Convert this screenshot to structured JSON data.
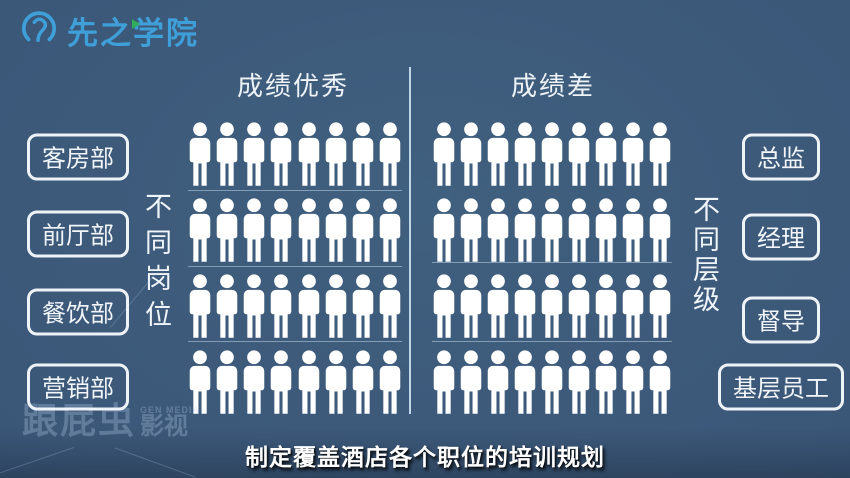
{
  "page": {
    "background_color": "#3d5a7b"
  },
  "logo": {
    "text": "先之学院",
    "color": "#3f9fd8",
    "accent_color": "#2fae57"
  },
  "chart_data": {
    "type": "pictograph",
    "title_left": "成绩优秀",
    "title_right": "成绩差",
    "groups": [
      {
        "title": "成绩优秀",
        "rows": [
          8,
          8,
          8,
          8
        ]
      },
      {
        "title": "成绩差",
        "rows": [
          9,
          9,
          9,
          9
        ]
      }
    ],
    "row_labels_left": [
      "客房部",
      "前厅部",
      "餐饮部",
      "营销部"
    ],
    "row_labels_right": [
      "总监",
      "经理",
      "督导",
      "基层员工"
    ],
    "axis_left": "不同岗位",
    "axis_right": "不同层级",
    "icon": "person",
    "icon_color": "#ffffff",
    "legend_position": "none",
    "notes": "Rows of person icons; left group 4 rows of 8, right group 4 rows of 9, separated by a vertical divider line"
  },
  "caption": {
    "text": "制定覆盖酒店各个职位的培训规划"
  },
  "watermark": {
    "main": "跟屁虫",
    "sub": "影视",
    "small": "GEN MEDIA"
  }
}
